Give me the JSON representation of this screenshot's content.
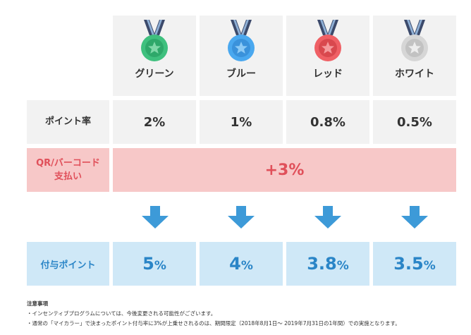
{
  "tiers": [
    {
      "name": "グリーン",
      "rate": "2%",
      "points_num": "5",
      "points_unit": "%",
      "medal_color": "#3fc07e",
      "medal_inner": "#2ea86a"
    },
    {
      "name": "ブルー",
      "rate": "1%",
      "points_num": "4",
      "points_unit": "%",
      "medal_color": "#4aa8ef",
      "medal_inner": "#3a92db"
    },
    {
      "name": "レッド",
      "rate": "0.8%",
      "points_num": "3.8",
      "points_unit": "%",
      "medal_color": "#ef6065",
      "medal_inner": "#d9484e"
    },
    {
      "name": "ホワイト",
      "rate": "0.5%",
      "points_num": "3.5",
      "points_unit": "%",
      "medal_color": "#d6d6d6",
      "medal_inner": "#c2c2c2"
    }
  ],
  "rows": {
    "point_rate_label": "ポイント率",
    "qr_label_line1": "QR/バーコード",
    "qr_label_line2": "支払い",
    "qr_bonus": "+3%",
    "points_label": "付与ポイント"
  },
  "notes": {
    "title": "注意事項",
    "line1": "・インセンティブプログラムについては、今後変更される可能性がございます。",
    "line2": "・通常の「マイカラー」で決まったポイント付与率に3%が上乗せされるのは、期間限定（2018年8月1日〜 2019年7月31日の1年間）での実施となります。"
  },
  "colors": {
    "header_bg": "#f2f2f2",
    "qr_bg": "#f7c8c8",
    "qr_text": "#e0505a",
    "points_bg": "#cfe8f7",
    "points_text": "#2a85c7",
    "arrow": "#3d9ad8"
  }
}
